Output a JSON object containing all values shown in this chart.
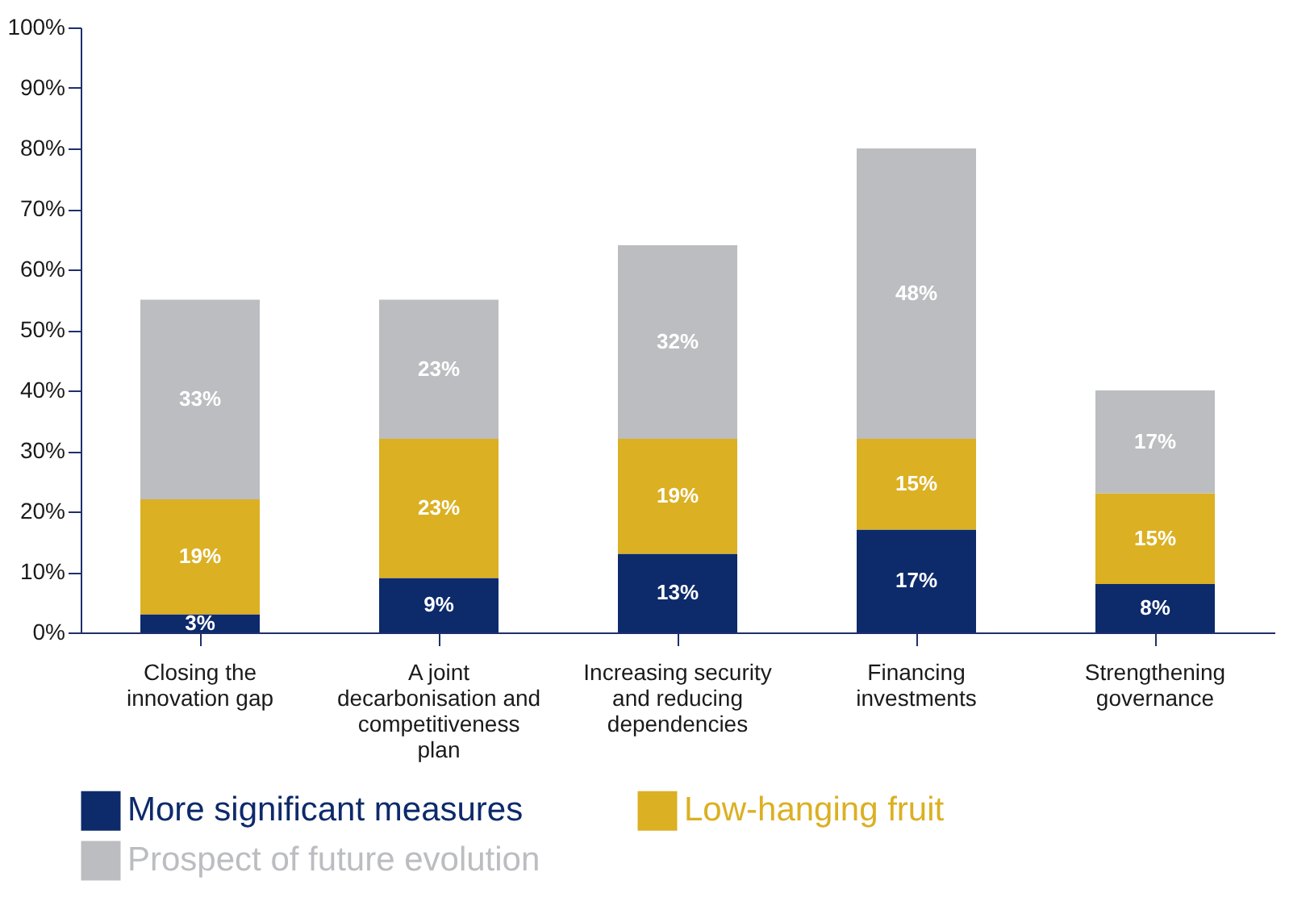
{
  "chart_data": {
    "type": "bar",
    "stacked": true,
    "categories": [
      "Closing the innovation gap",
      "A joint decarbonisation and competitiveness plan",
      "Increasing security and reducing dependencies",
      "Financing investments",
      "Strengthening governance"
    ],
    "series": [
      {
        "name": "More significant measures",
        "color": "#0d2a6b",
        "values": [
          3,
          9,
          13,
          17,
          8
        ],
        "value_labels": [
          "3%",
          "9%",
          "13%",
          "17%",
          "8%"
        ]
      },
      {
        "name": "Low-hanging fruit",
        "color": "#dbb022",
        "values": [
          19,
          23,
          19,
          15,
          15
        ],
        "value_labels": [
          "19%",
          "23%",
          "19%",
          "15%",
          "15%"
        ]
      },
      {
        "name": "Prospect of future evolution",
        "color": "#bcbdc0",
        "values": [
          33,
          23,
          32,
          48,
          17
        ],
        "value_labels": [
          "33%",
          "23%",
          "32%",
          "48%",
          "17%"
        ]
      }
    ],
    "ylim": [
      0,
      100
    ],
    "yticks": [
      {
        "value": 0,
        "label": "0%"
      },
      {
        "value": 10,
        "label": "10%"
      },
      {
        "value": 20,
        "label": "20%"
      },
      {
        "value": 30,
        "label": "30%"
      },
      {
        "value": 40,
        "label": "40%"
      },
      {
        "value": 50,
        "label": "50%"
      },
      {
        "value": 60,
        "label": "60%"
      },
      {
        "value": 70,
        "label": "70%"
      },
      {
        "value": 80,
        "label": "80%"
      },
      {
        "value": 90,
        "label": "90%"
      },
      {
        "value": 100,
        "label": "100%"
      }
    ],
    "legend": "bottom"
  }
}
